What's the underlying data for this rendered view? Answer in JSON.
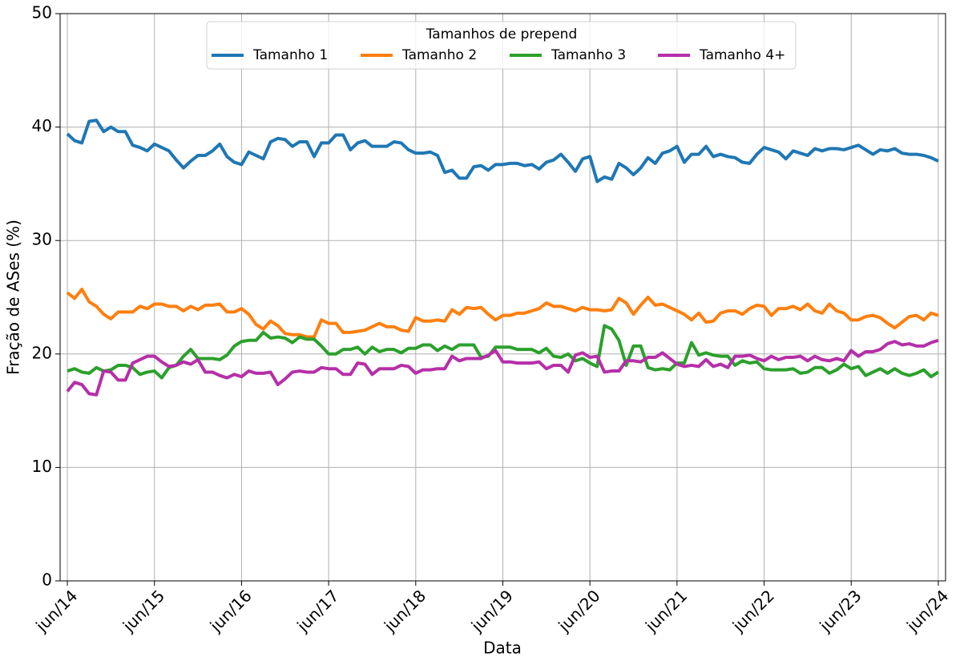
{
  "chart_data": {
    "type": "line",
    "xlabel": "Data",
    "ylabel": "Fração de ASes (%)",
    "legend_title": "Tamanhos de prepend",
    "legend": "upper center",
    "grid": true,
    "xlim": [
      "2014-05",
      "2024-07"
    ],
    "ylim": [
      0,
      50
    ],
    "yticks": [
      0,
      10,
      20,
      30,
      40,
      50
    ],
    "xticks": [
      {
        "value": "2014-06",
        "label": "jun/14"
      },
      {
        "value": "2015-06",
        "label": "jun/15"
      },
      {
        "value": "2016-06",
        "label": "jun/16"
      },
      {
        "value": "2017-06",
        "label": "jun/17"
      },
      {
        "value": "2018-06",
        "label": "jun/18"
      },
      {
        "value": "2019-06",
        "label": "jun/19"
      },
      {
        "value": "2020-06",
        "label": "jun/20"
      },
      {
        "value": "2021-06",
        "label": "jun/21"
      },
      {
        "value": "2022-06",
        "label": "jun/22"
      },
      {
        "value": "2023-06",
        "label": "jun/23"
      },
      {
        "value": "2024-06",
        "label": "jun/24"
      }
    ],
    "x": [
      "2014-06",
      "2014-07",
      "2014-08",
      "2014-09",
      "2014-10",
      "2014-11",
      "2014-12",
      "2015-01",
      "2015-02",
      "2015-03",
      "2015-04",
      "2015-05",
      "2015-06",
      "2015-07",
      "2015-08",
      "2015-09",
      "2015-10",
      "2015-11",
      "2015-12",
      "2016-01",
      "2016-02",
      "2016-03",
      "2016-04",
      "2016-05",
      "2016-06",
      "2016-07",
      "2016-08",
      "2016-09",
      "2016-10",
      "2016-11",
      "2016-12",
      "2017-01",
      "2017-02",
      "2017-03",
      "2017-04",
      "2017-05",
      "2017-06",
      "2017-07",
      "2017-08",
      "2017-09",
      "2017-10",
      "2017-11",
      "2017-12",
      "2018-01",
      "2018-02",
      "2018-03",
      "2018-04",
      "2018-05",
      "2018-06",
      "2018-07",
      "2018-08",
      "2018-09",
      "2018-10",
      "2018-11",
      "2018-12",
      "2019-01",
      "2019-02",
      "2019-03",
      "2019-04",
      "2019-05",
      "2019-06",
      "2019-07",
      "2019-08",
      "2019-09",
      "2019-10",
      "2019-11",
      "2019-12",
      "2020-01",
      "2020-02",
      "2020-03",
      "2020-04",
      "2020-05",
      "2020-06",
      "2020-07",
      "2020-08",
      "2020-09",
      "2020-10",
      "2020-11",
      "2020-12",
      "2021-01",
      "2021-02",
      "2021-03",
      "2021-04",
      "2021-05",
      "2021-06",
      "2021-07",
      "2021-08",
      "2021-09",
      "2021-10",
      "2021-11",
      "2021-12",
      "2022-01",
      "2022-02",
      "2022-03",
      "2022-04",
      "2022-05",
      "2022-06",
      "2022-07",
      "2022-08",
      "2022-09",
      "2022-10",
      "2022-11",
      "2022-12",
      "2023-01",
      "2023-02",
      "2023-03",
      "2023-04",
      "2023-05",
      "2023-06",
      "2023-07",
      "2023-08",
      "2023-09",
      "2023-10",
      "2023-11",
      "2023-12",
      "2024-01",
      "2024-02",
      "2024-03",
      "2024-04",
      "2024-05",
      "2024-06"
    ],
    "series": [
      {
        "name": "Tamanho 1",
        "color": "#1f77b4",
        "values": [
          39.4,
          38.8,
          38.6,
          40.5,
          40.6,
          39.6,
          40.0,
          39.6,
          39.6,
          38.4,
          38.2,
          37.9,
          38.5,
          38.2,
          37.9,
          37.1,
          36.4,
          37.0,
          37.5,
          37.5,
          37.9,
          38.5,
          37.4,
          36.9,
          36.7,
          37.8,
          37.5,
          37.2,
          38.7,
          39.0,
          38.9,
          38.3,
          38.7,
          38.7,
          37.4,
          38.6,
          38.6,
          39.3,
          39.3,
          38.0,
          38.6,
          38.8,
          38.3,
          38.3,
          38.3,
          38.7,
          38.6,
          38.0,
          37.7,
          37.7,
          37.8,
          37.5,
          36.0,
          36.2,
          35.5,
          35.5,
          36.5,
          36.6,
          36.2,
          36.7,
          36.7,
          36.8,
          36.8,
          36.6,
          36.7,
          36.3,
          36.9,
          37.1,
          37.6,
          36.9,
          36.1,
          37.2,
          37.4,
          35.2,
          35.6,
          35.4,
          36.8,
          36.4,
          35.8,
          36.4,
          37.3,
          36.8,
          37.7,
          37.9,
          38.3,
          36.9,
          37.6,
          37.6,
          38.3,
          37.4,
          37.6,
          37.4,
          37.3,
          36.9,
          36.8,
          37.6,
          38.2,
          38.0,
          37.8,
          37.2,
          37.9,
          37.7,
          37.5,
          38.1,
          37.9,
          38.1,
          38.1,
          38.0,
          38.2,
          38.4,
          38.0,
          37.6,
          38.0,
          37.9,
          38.1,
          37.7,
          37.6,
          37.6,
          37.5,
          37.3,
          37.0
        ]
      },
      {
        "name": "Tamanho 2",
        "color": "#ff7f0e",
        "values": [
          25.4,
          24.9,
          25.7,
          24.6,
          24.2,
          23.5,
          23.1,
          23.7,
          23.7,
          23.7,
          24.2,
          24.0,
          24.4,
          24.4,
          24.2,
          24.2,
          23.8,
          24.2,
          23.9,
          24.3,
          24.3,
          24.4,
          23.7,
          23.7,
          24.0,
          23.5,
          22.6,
          22.2,
          22.9,
          22.5,
          21.8,
          21.7,
          21.7,
          21.5,
          21.5,
          23.0,
          22.7,
          22.7,
          21.9,
          21.9,
          22.0,
          22.1,
          22.4,
          22.7,
          22.4,
          22.4,
          22.1,
          22.0,
          23.2,
          22.9,
          22.9,
          23.0,
          22.9,
          23.9,
          23.5,
          24.1,
          24.0,
          24.1,
          23.5,
          23.0,
          23.4,
          23.4,
          23.6,
          23.6,
          23.8,
          24.0,
          24.5,
          24.2,
          24.2,
          24.0,
          23.8,
          24.1,
          23.9,
          23.9,
          23.8,
          23.9,
          24.9,
          24.5,
          23.5,
          24.3,
          25.0,
          24.3,
          24.4,
          24.1,
          23.8,
          23.5,
          23.0,
          23.6,
          22.8,
          22.9,
          23.6,
          23.8,
          23.8,
          23.5,
          24.0,
          24.3,
          24.2,
          23.4,
          24.0,
          24.0,
          24.2,
          23.9,
          24.4,
          23.8,
          23.6,
          24.4,
          23.8,
          23.6,
          23.0,
          23.0,
          23.3,
          23.4,
          23.2,
          22.7,
          22.3,
          22.8,
          23.3,
          23.4,
          23.0,
          23.6,
          23.4
        ]
      },
      {
        "name": "Tamanho 3",
        "color": "#2ca02c",
        "values": [
          18.5,
          18.7,
          18.4,
          18.3,
          18.8,
          18.5,
          18.6,
          19.0,
          19.0,
          18.8,
          18.2,
          18.4,
          18.5,
          17.9,
          18.8,
          19.0,
          19.8,
          20.4,
          19.6,
          19.6,
          19.6,
          19.5,
          19.9,
          20.7,
          21.1,
          21.2,
          21.2,
          21.9,
          21.4,
          21.5,
          21.4,
          21.0,
          21.5,
          21.3,
          21.3,
          20.7,
          20.0,
          20.0,
          20.4,
          20.4,
          20.6,
          20.0,
          20.6,
          20.2,
          20.4,
          20.4,
          20.1,
          20.5,
          20.5,
          20.8,
          20.8,
          20.3,
          20.7,
          20.4,
          20.8,
          20.8,
          20.8,
          19.7,
          19.8,
          20.6,
          20.6,
          20.6,
          20.4,
          20.4,
          20.4,
          20.1,
          20.5,
          19.8,
          19.7,
          20.0,
          19.4,
          19.6,
          19.2,
          18.9,
          22.5,
          22.2,
          21.2,
          19.0,
          20.7,
          20.7,
          18.8,
          18.6,
          18.7,
          18.6,
          19.2,
          19.2,
          21.0,
          19.9,
          20.1,
          19.9,
          19.8,
          19.8,
          19.0,
          19.4,
          19.2,
          19.3,
          18.7,
          18.6,
          18.6,
          18.6,
          18.7,
          18.3,
          18.4,
          18.8,
          18.8,
          18.3,
          18.6,
          19.1,
          18.7,
          18.9,
          18.1,
          18.4,
          18.7,
          18.3,
          18.7,
          18.3,
          18.1,
          18.3,
          18.6,
          18.0,
          18.4
        ]
      },
      {
        "name": "Tamanho 4+",
        "color": "#b52fa8",
        "values": [
          16.7,
          17.5,
          17.3,
          16.5,
          16.4,
          18.5,
          18.4,
          17.7,
          17.7,
          19.2,
          19.5,
          19.8,
          19.8,
          19.3,
          18.9,
          19.0,
          19.3,
          19.1,
          19.5,
          18.4,
          18.4,
          18.1,
          17.9,
          18.2,
          18.0,
          18.5,
          18.3,
          18.3,
          18.4,
          17.3,
          17.8,
          18.4,
          18.5,
          18.4,
          18.4,
          18.8,
          18.7,
          18.7,
          18.2,
          18.2,
          19.2,
          19.1,
          18.2,
          18.7,
          18.7,
          18.7,
          19.0,
          18.9,
          18.3,
          18.6,
          18.6,
          18.7,
          18.7,
          19.8,
          19.4,
          19.6,
          19.6,
          19.6,
          19.9,
          20.3,
          19.3,
          19.3,
          19.2,
          19.2,
          19.2,
          19.3,
          18.7,
          19.0,
          19.0,
          18.4,
          19.9,
          20.1,
          19.7,
          19.8,
          18.4,
          18.5,
          18.5,
          19.4,
          19.4,
          19.3,
          19.7,
          19.7,
          20.1,
          19.6,
          19.1,
          18.9,
          19.0,
          18.9,
          19.5,
          18.9,
          19.1,
          18.8,
          19.8,
          19.8,
          19.9,
          19.6,
          19.4,
          19.8,
          19.5,
          19.7,
          19.7,
          19.8,
          19.4,
          19.8,
          19.5,
          19.4,
          19.6,
          19.4,
          20.3,
          19.8,
          20.2,
          20.2,
          20.4,
          20.9,
          21.1,
          20.8,
          20.9,
          20.7,
          20.7,
          21.0,
          21.2
        ]
      }
    ]
  }
}
